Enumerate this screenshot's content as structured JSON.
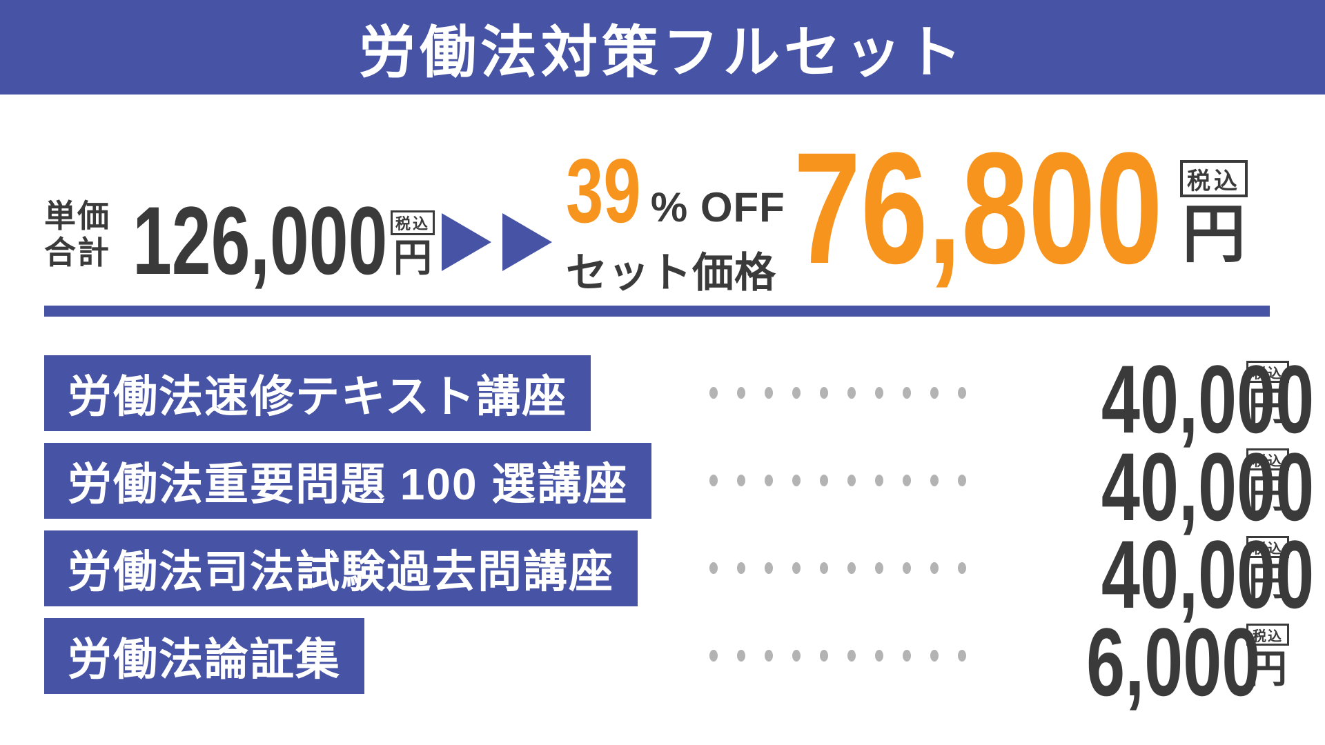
{
  "header": {
    "title": "労働法対策フルセット"
  },
  "summary": {
    "unit_label_line1": "単価",
    "unit_label_line2": "合計",
    "unit_price": "126,000",
    "unit_currency": "円",
    "unit_tax_badge": "税込",
    "discount_percent": "39",
    "discount_suffix": "% OFF",
    "set_price_label": "セット価格",
    "set_price": "76,800",
    "set_currency": "円",
    "set_tax_badge": "税込"
  },
  "items": [
    {
      "name": "労働法速修テキスト講座",
      "price": "40,000",
      "currency": "円",
      "tax_badge": "税込"
    },
    {
      "name": "労働法重要問題 100 選講座",
      "price": "40,000",
      "currency": "円",
      "tax_badge": "税込"
    },
    {
      "name": "労働法司法試験過去問講座",
      "price": "40,000",
      "currency": "円",
      "tax_badge": "税込"
    },
    {
      "name": "労働法論証集",
      "price": "6,000",
      "currency": "円",
      "tax_badge": "税込"
    }
  ],
  "colors": {
    "accent_blue": "#4753a4",
    "accent_orange": "#f7941e",
    "text_dark": "#3a3a3a",
    "dot_gray": "#b3b3b3"
  },
  "dots_per_row": 10
}
